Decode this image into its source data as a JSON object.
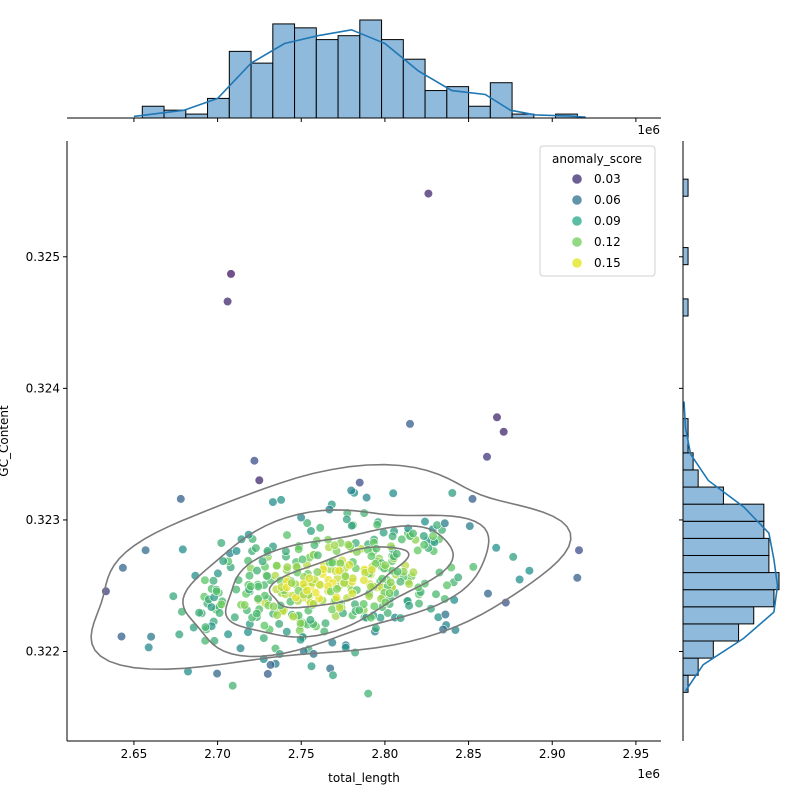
{
  "chart_data": {
    "type": "scatter",
    "title": "",
    "xlabel": "total_length",
    "ylabel": "GC_Content",
    "x_offset_label": "1e6",
    "xlim": [
      2610000,
      2965000
    ],
    "ylim": [
      0.32132,
      0.32588
    ],
    "x_ticks": [
      2650000,
      2700000,
      2750000,
      2800000,
      2850000,
      2900000,
      2950000
    ],
    "x_tick_labels": [
      "2.65",
      "2.70",
      "2.75",
      "2.80",
      "2.85",
      "2.90",
      "2.95"
    ],
    "y_ticks": [
      0.322,
      0.323,
      0.324,
      0.325
    ],
    "y_tick_labels": [
      "0.322",
      "0.323",
      "0.324",
      "0.325"
    ],
    "grid": false,
    "legend": {
      "title": "anomaly_score",
      "position": "top-right",
      "entries": [
        {
          "label": "0.03",
          "value": 0.03,
          "color": "#3b2a6f"
        },
        {
          "label": "0.06",
          "value": 0.06,
          "color": "#2c6f8e"
        },
        {
          "label": "0.09",
          "value": 0.09,
          "color": "#21a884"
        },
        {
          "label": "0.12",
          "value": 0.12,
          "color": "#6ccd5a"
        },
        {
          "label": "0.15",
          "value": 0.15,
          "color": "#e3e418"
        }
      ]
    },
    "outliers": [
      {
        "x": 2826000,
        "y": 0.32548,
        "score": 0.02
      },
      {
        "x": 2708000,
        "y": 0.32487,
        "score": 0.01
      },
      {
        "x": 2706000,
        "y": 0.32466,
        "score": 0.02
      },
      {
        "x": 2867000,
        "y": 0.32378,
        "score": 0.02
      },
      {
        "x": 2871000,
        "y": 0.32367,
        "score": 0.02
      },
      {
        "x": 2861000,
        "y": 0.32348,
        "score": 0.03
      },
      {
        "x": 2815000,
        "y": 0.32373,
        "score": 0.05
      },
      {
        "x": 2916000,
        "y": 0.32277,
        "score": 0.04
      },
      {
        "x": 2915000,
        "y": 0.32256,
        "score": 0.05
      },
      {
        "x": 2657000,
        "y": 0.32277,
        "score": 0.06
      },
      {
        "x": 2678000,
        "y": 0.32316,
        "score": 0.05
      },
      {
        "x": 2722000,
        "y": 0.32345,
        "score": 0.04
      },
      {
        "x": 2790000,
        "y": 0.32168,
        "score": 0.11
      },
      {
        "x": 2769000,
        "y": 0.32182,
        "score": 0.1
      },
      {
        "x": 2709000,
        "y": 0.32174,
        "score": 0.11
      },
      {
        "x": 2730000,
        "y": 0.32183,
        "score": 0.05
      }
    ],
    "cluster": {
      "n_points": 420,
      "center": [
        2767000,
        0.32254
      ],
      "x_sd": 43000,
      "y_sd": 0.00026,
      "correlation": 0.35
    },
    "kde_contours": [
      {
        "cx": 2762000,
        "cy": 0.32262,
        "rx": 142000,
        "ry": 0.00068,
        "angle": 10
      },
      {
        "cx": 2768000,
        "cy": 0.32256,
        "rx": 93000,
        "ry": 0.00048,
        "angle": 13
      },
      {
        "cx": 2770000,
        "cy": 0.32254,
        "rx": 70000,
        "ry": 0.00034,
        "angle": 16
      },
      {
        "cx": 2772000,
        "cy": 0.32256,
        "rx": 42000,
        "ry": 0.00017,
        "angle": 18
      }
    ],
    "x_histogram": {
      "bin_edges": [
        2655000,
        2668000,
        2681000,
        2694000,
        2707000,
        2720000,
        2733000,
        2746000,
        2759000,
        2772000,
        2785000,
        2798000,
        2811000,
        2824000,
        2837000,
        2850000,
        2863000,
        2876000,
        2889000,
        2902000,
        2915000
      ],
      "counts": [
        3,
        2,
        1,
        5,
        17,
        14,
        24,
        23,
        20,
        21,
        25,
        20,
        15,
        7,
        8,
        3,
        9,
        1,
        0,
        1
      ],
      "max_count": 25,
      "kde": [
        [
          2650000,
          0.4
        ],
        [
          2680000,
          2
        ],
        [
          2700000,
          5
        ],
        [
          2720000,
          14
        ],
        [
          2740000,
          19
        ],
        [
          2760000,
          21
        ],
        [
          2780000,
          22.5
        ],
        [
          2800000,
          19
        ],
        [
          2820000,
          12
        ],
        [
          2840000,
          7
        ],
        [
          2860000,
          6
        ],
        [
          2875000,
          2
        ],
        [
          2890000,
          0.8
        ],
        [
          2910000,
          0.5
        ],
        [
          2920000,
          0.2
        ]
      ]
    },
    "y_histogram": {
      "bin_edges": [
        0.32169,
        0.32182,
        0.32195,
        0.32208,
        0.32221,
        0.32234,
        0.32247,
        0.3226,
        0.32273,
        0.32286,
        0.32299,
        0.32312,
        0.32325,
        0.32338,
        0.32351,
        0.32364,
        0.32377,
        0.3239,
        0.32403,
        0.32416,
        0.32429,
        0.32442,
        0.32455,
        0.32468,
        0.32481,
        0.32494,
        0.32507,
        0.3252,
        0.32533,
        0.32546,
        0.32559
      ],
      "counts": [
        1,
        3,
        6,
        11,
        14,
        18,
        19,
        17,
        17,
        16,
        16,
        8,
        3,
        2,
        1,
        1,
        0,
        0,
        0,
        0,
        0,
        0,
        1,
        0,
        0,
        1,
        0,
        0,
        0,
        1
      ],
      "max_count": 19,
      "kde": [
        [
          0.3217,
          0.5
        ],
        [
          0.3219,
          4
        ],
        [
          0.3221,
          12
        ],
        [
          0.3223,
          18
        ],
        [
          0.3225,
          18.7
        ],
        [
          0.3227,
          18
        ],
        [
          0.3229,
          17
        ],
        [
          0.3231,
          12
        ],
        [
          0.3233,
          5
        ],
        [
          0.3235,
          1.5
        ],
        [
          0.3237,
          0.5
        ],
        [
          0.3239,
          0.2
        ]
      ]
    }
  }
}
